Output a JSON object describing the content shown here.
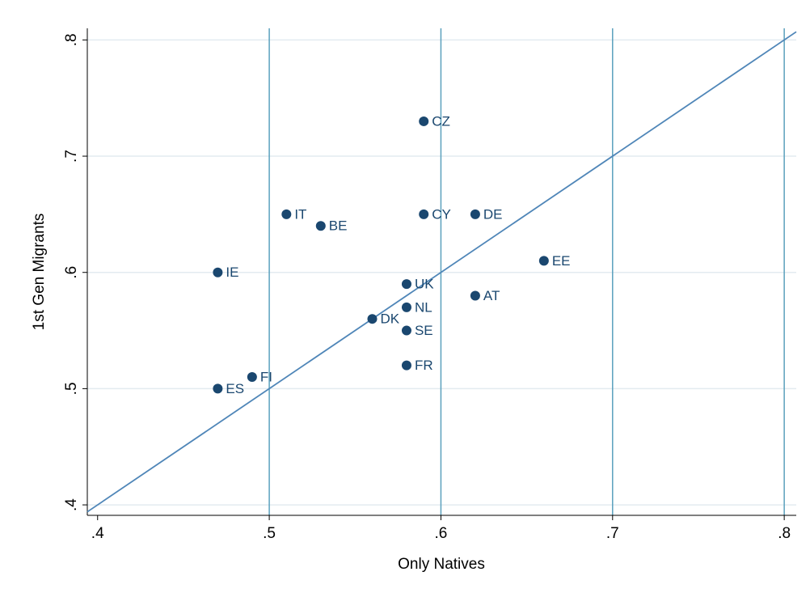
{
  "chart_data": {
    "type": "scatter",
    "x_label": "Only Natives",
    "y_label": "1st Gen Migrants",
    "labels": [
      "CZ",
      "IT",
      "BE",
      "CY",
      "DE",
      "EE",
      "IE",
      "UK",
      "AT",
      "NL",
      "DK",
      "SE",
      "FR",
      "FI",
      "ES"
    ],
    "x": [
      0.59,
      0.51,
      0.53,
      0.59,
      0.62,
      0.66,
      0.47,
      0.58,
      0.62,
      0.58,
      0.56,
      0.58,
      0.58,
      0.49,
      0.47
    ],
    "values": [
      0.73,
      0.65,
      0.64,
      0.65,
      0.65,
      0.61,
      0.6,
      0.59,
      0.58,
      0.57,
      0.56,
      0.55,
      0.52,
      0.51,
      0.5
    ],
    "color": "#1a476f",
    "xlim": [
      0.394,
      0.807
    ],
    "ylim": [
      0.391,
      0.81
    ],
    "xticks": [
      {
        "value": 0.4,
        "label": ".4"
      },
      {
        "value": 0.5,
        "label": ".5"
      },
      {
        "value": 0.6,
        "label": ".6"
      },
      {
        "value": 0.7,
        "label": ".7"
      },
      {
        "value": 0.8,
        "label": ".8"
      }
    ],
    "yticks": [
      {
        "value": 0.4,
        "label": ".4"
      },
      {
        "value": 0.5,
        "label": ".5"
      },
      {
        "value": 0.6,
        "label": ".6"
      },
      {
        "value": 0.7,
        "label": ".7"
      },
      {
        "value": 0.8,
        "label": ".8"
      }
    ],
    "x_grid_color": "#5aa0bd",
    "y_grid_color": "#e3ebf0",
    "diagonal": true,
    "diagonal_color": "#4f86b8"
  }
}
